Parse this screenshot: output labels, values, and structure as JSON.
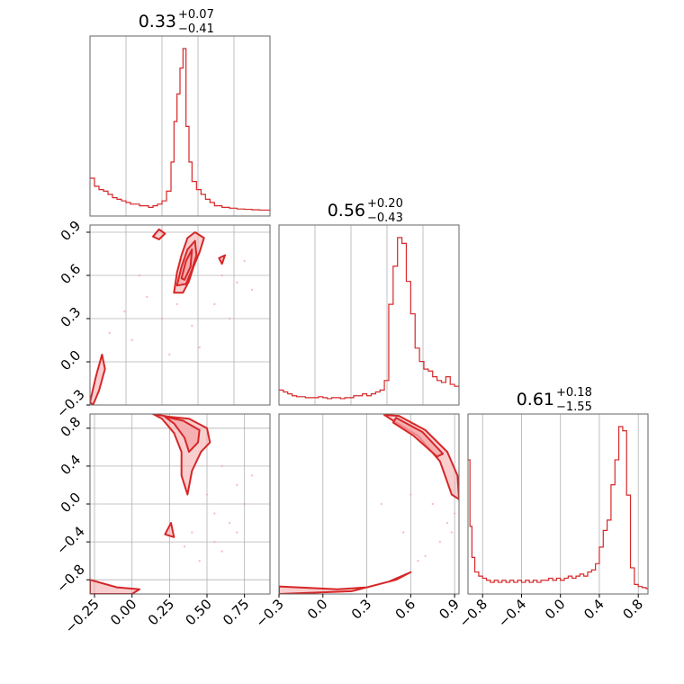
{
  "chart_data": {
    "type": "corner",
    "color": "#d62728",
    "fill_color": "#f4a6a8",
    "grid": true,
    "panels": [
      {
        "id": "hist-0",
        "type": "histogram",
        "title": {
          "median": "0.33",
          "plus": "+0.07",
          "minus": "−0.41"
        },
        "xlim": [
          -0.28,
          0.92
        ],
        "x_ticks": [],
        "x_tick_labels": [],
        "y_ticks": [],
        "y_tick_labels": [],
        "bins": [
          -0.28,
          -0.25,
          -0.22,
          -0.19,
          -0.16,
          -0.13,
          -0.1,
          -0.07,
          -0.04,
          -0.01,
          0.02,
          0.05,
          0.08,
          0.11,
          0.14,
          0.17,
          0.2,
          0.23,
          0.26,
          0.28,
          0.3,
          0.32,
          0.34,
          0.36,
          0.38,
          0.4,
          0.43,
          0.46,
          0.49,
          0.52,
          0.55,
          0.6,
          0.65,
          0.7,
          0.75,
          0.8,
          0.85,
          0.92
        ],
        "counts": [
          0.2,
          0.15,
          0.13,
          0.12,
          0.1,
          0.08,
          0.07,
          0.06,
          0.05,
          0.04,
          0.04,
          0.03,
          0.03,
          0.02,
          0.03,
          0.04,
          0.06,
          0.12,
          0.3,
          0.55,
          0.72,
          0.88,
          1.0,
          0.52,
          0.3,
          0.18,
          0.13,
          0.1,
          0.07,
          0.05,
          0.03,
          0.02,
          0.015,
          0.01,
          0.008,
          0.005,
          0.003
        ]
      },
      {
        "id": "hist-1",
        "type": "histogram",
        "title": {
          "median": "0.56",
          "plus": "+0.20",
          "minus": "−0.43"
        },
        "xlim": [
          -0.3,
          0.93
        ],
        "x_ticks": [],
        "x_tick_labels": [],
        "y_ticks": [],
        "y_tick_labels": [],
        "bins": [
          -0.3,
          -0.27,
          -0.24,
          -0.21,
          -0.18,
          -0.15,
          -0.12,
          -0.09,
          -0.06,
          -0.03,
          0.0,
          0.03,
          0.06,
          0.09,
          0.12,
          0.15,
          0.18,
          0.21,
          0.24,
          0.27,
          0.3,
          0.33,
          0.36,
          0.39,
          0.42,
          0.45,
          0.48,
          0.51,
          0.54,
          0.57,
          0.6,
          0.63,
          0.66,
          0.69,
          0.72,
          0.75,
          0.78,
          0.81,
          0.84,
          0.87,
          0.9,
          0.93
        ],
        "counts": [
          0.05,
          0.04,
          0.03,
          0.02,
          0.015,
          0.015,
          0.01,
          0.01,
          0.01,
          0.015,
          0.01,
          0.005,
          0.01,
          0.01,
          0.005,
          0.01,
          0.01,
          0.02,
          0.02,
          0.03,
          0.02,
          0.03,
          0.04,
          0.05,
          0.1,
          0.5,
          0.7,
          0.85,
          0.82,
          0.62,
          0.45,
          0.27,
          0.2,
          0.16,
          0.15,
          0.12,
          0.1,
          0.09,
          0.12,
          0.08,
          0.07
        ]
      },
      {
        "id": "hist-2",
        "type": "histogram",
        "title": {
          "median": "0.61",
          "plus": "+0.18",
          "minus": "−1.55"
        },
        "xlim": [
          -0.95,
          0.9
        ],
        "x_ticks": [
          -0.8,
          -0.4,
          0.0,
          0.4,
          0.8
        ],
        "x_tick_labels": [
          "−0.8",
          "−0.4",
          "0.0",
          "0.4",
          "0.8"
        ],
        "y_ticks": [],
        "y_tick_labels": [],
        "bins": [
          -0.95,
          -0.93,
          -0.91,
          -0.88,
          -0.84,
          -0.8,
          -0.76,
          -0.72,
          -0.68,
          -0.64,
          -0.6,
          -0.56,
          -0.52,
          -0.48,
          -0.44,
          -0.4,
          -0.36,
          -0.32,
          -0.28,
          -0.24,
          -0.2,
          -0.16,
          -0.12,
          -0.08,
          -0.04,
          0.0,
          0.04,
          0.08,
          0.12,
          0.16,
          0.2,
          0.24,
          0.28,
          0.32,
          0.36,
          0.4,
          0.44,
          0.48,
          0.52,
          0.56,
          0.6,
          0.64,
          0.68,
          0.72,
          0.76,
          0.8,
          0.84,
          0.88,
          0.9
        ],
        "counts": [
          0.62,
          0.3,
          0.15,
          0.08,
          0.06,
          0.05,
          0.04,
          0.03,
          0.04,
          0.03,
          0.04,
          0.03,
          0.04,
          0.03,
          0.04,
          0.03,
          0.04,
          0.03,
          0.04,
          0.03,
          0.04,
          0.04,
          0.05,
          0.04,
          0.05,
          0.04,
          0.05,
          0.06,
          0.05,
          0.06,
          0.07,
          0.06,
          0.08,
          0.09,
          0.12,
          0.2,
          0.28,
          0.33,
          0.5,
          0.62,
          0.78,
          0.76,
          0.45,
          0.1,
          0.02,
          0.01,
          0.005,
          0.0
        ]
      },
      {
        "id": "scatter-1-0",
        "type": "contour",
        "xlim": [
          -0.28,
          0.92
        ],
        "ylim": [
          -0.3,
          0.95
        ],
        "x_ticks": [],
        "x_tick_labels": [],
        "y_ticks": [
          0.9,
          0.6,
          0.3,
          0.0,
          -0.3
        ],
        "y_tick_labels": [
          "0.9",
          "0.6",
          "0.3",
          "0.0",
          "−0.3"
        ],
        "contours": [
          [
            [
              0.28,
              0.48
            ],
            [
              0.3,
              0.62
            ],
            [
              0.33,
              0.74
            ],
            [
              0.37,
              0.86
            ],
            [
              0.42,
              0.9
            ],
            [
              0.48,
              0.86
            ],
            [
              0.45,
              0.76
            ],
            [
              0.41,
              0.66
            ],
            [
              0.38,
              0.56
            ],
            [
              0.34,
              0.48
            ]
          ],
          [
            [
              0.3,
              0.53
            ],
            [
              0.33,
              0.66
            ],
            [
              0.37,
              0.78
            ],
            [
              0.42,
              0.84
            ],
            [
              0.43,
              0.74
            ],
            [
              0.4,
              0.64
            ],
            [
              0.36,
              0.54
            ]
          ],
          [
            [
              0.33,
              0.58
            ],
            [
              0.36,
              0.7
            ],
            [
              0.4,
              0.78
            ],
            [
              0.39,
              0.66
            ],
            [
              0.35,
              0.57
            ]
          ],
          [
            [
              -0.28,
              -0.28
            ],
            [
              -0.24,
              -0.1
            ],
            [
              -0.2,
              0.05
            ],
            [
              -0.18,
              -0.05
            ],
            [
              -0.22,
              -0.2
            ],
            [
              -0.26,
              -0.3
            ]
          ],
          [
            [
              0.14,
              0.87
            ],
            [
              0.18,
              0.92
            ],
            [
              0.22,
              0.89
            ],
            [
              0.18,
              0.85
            ]
          ],
          [
            [
              0.58,
              0.72
            ],
            [
              0.62,
              0.74
            ],
            [
              0.6,
              0.68
            ]
          ]
        ],
        "points": [
          [
            0.05,
            0.6
          ],
          [
            0.1,
            0.45
          ],
          [
            0.2,
            0.3
          ],
          [
            0.4,
            0.25
          ],
          [
            0.55,
            0.4
          ],
          [
            0.7,
            0.55
          ],
          [
            0.8,
            0.5
          ],
          [
            -0.05,
            0.35
          ],
          [
            0.65,
            0.3
          ],
          [
            0.75,
            0.7
          ],
          [
            0.45,
            0.1
          ],
          [
            0.25,
            0.05
          ],
          [
            0.0,
            0.15
          ],
          [
            -0.15,
            0.2
          ],
          [
            0.3,
            0.4
          ],
          [
            0.6,
            0.6
          ]
        ]
      },
      {
        "id": "scatter-2-0",
        "type": "contour",
        "xlim": [
          -0.28,
          0.92
        ],
        "ylim": [
          -0.95,
          0.95
        ],
        "x_ticks": [
          -0.25,
          0.0,
          0.25,
          0.5,
          0.75
        ],
        "x_tick_labels": [
          "−0.25",
          "0.00",
          "0.25",
          "0.50",
          "0.75"
        ],
        "y_ticks": [
          0.8,
          0.4,
          0.0,
          -0.4,
          -0.8
        ],
        "y_tick_labels": [
          "0.8",
          "0.4",
          "0.0",
          "−0.4",
          "−0.8"
        ],
        "contours": [
          [
            [
              0.14,
              0.95
            ],
            [
              0.25,
              0.92
            ],
            [
              0.38,
              0.9
            ],
            [
              0.5,
              0.8
            ],
            [
              0.52,
              0.65
            ],
            [
              0.46,
              0.55
            ],
            [
              0.4,
              0.35
            ],
            [
              0.37,
              0.1
            ],
            [
              0.33,
              0.3
            ],
            [
              0.33,
              0.55
            ],
            [
              0.28,
              0.75
            ],
            [
              0.2,
              0.9
            ]
          ],
          [
            [
              0.22,
              0.92
            ],
            [
              0.34,
              0.88
            ],
            [
              0.45,
              0.78
            ],
            [
              0.44,
              0.65
            ],
            [
              0.38,
              0.55
            ],
            [
              0.35,
              0.7
            ],
            [
              0.28,
              0.85
            ]
          ],
          [
            [
              -0.28,
              -0.8
            ],
            [
              -0.1,
              -0.88
            ],
            [
              0.05,
              -0.9
            ],
            [
              0.0,
              -0.95
            ],
            [
              -0.28,
              -0.95
            ]
          ],
          [
            [
              0.22,
              -0.32
            ],
            [
              0.26,
              -0.2
            ],
            [
              0.28,
              -0.35
            ]
          ]
        ],
        "points": [
          [
            0.6,
            0.4
          ],
          [
            0.7,
            0.2
          ],
          [
            0.75,
            0.0
          ],
          [
            0.65,
            -0.2
          ],
          [
            0.55,
            -0.4
          ],
          [
            0.45,
            -0.6
          ],
          [
            0.5,
            0.1
          ],
          [
            0.6,
            -0.5
          ],
          [
            0.4,
            -0.3
          ],
          [
            0.8,
            0.3
          ],
          [
            0.55,
            -0.1
          ],
          [
            0.35,
            -0.45
          ],
          [
            0.7,
            -0.3
          ]
        ]
      },
      {
        "id": "scatter-2-1",
        "type": "contour",
        "xlim": [
          -0.3,
          0.93
        ],
        "ylim": [
          -0.95,
          0.95
        ],
        "x_ticks": [
          -0.3,
          0.0,
          0.3,
          0.6,
          0.9
        ],
        "x_tick_labels": [
          "−0.3",
          "0.0",
          "0.3",
          "0.6",
          "0.9"
        ],
        "y_ticks": [],
        "y_tick_labels": [],
        "contours": [
          [
            [
              0.42,
              0.94
            ],
            [
              0.52,
              0.93
            ],
            [
              0.7,
              0.78
            ],
            [
              0.85,
              0.55
            ],
            [
              0.92,
              0.3
            ],
            [
              0.93,
              0.05
            ],
            [
              0.88,
              0.1
            ],
            [
              0.8,
              0.45
            ],
            [
              0.65,
              0.72
            ],
            [
              0.48,
              0.88
            ]
          ],
          [
            [
              0.5,
              0.91
            ],
            [
              0.68,
              0.76
            ],
            [
              0.82,
              0.53
            ],
            [
              0.78,
              0.5
            ],
            [
              0.62,
              0.72
            ],
            [
              0.48,
              0.86
            ]
          ],
          [
            [
              -0.3,
              -0.87
            ],
            [
              0.1,
              -0.9
            ],
            [
              0.3,
              -0.88
            ],
            [
              0.5,
              -0.8
            ],
            [
              0.6,
              -0.72
            ],
            [
              0.45,
              -0.82
            ],
            [
              0.2,
              -0.92
            ],
            [
              -0.3,
              -0.95
            ]
          ]
        ],
        "points": [
          [
            0.8,
            -0.4
          ],
          [
            0.85,
            -0.2
          ],
          [
            0.9,
            -0.1
          ],
          [
            0.7,
            -0.55
          ],
          [
            0.75,
            0.0
          ],
          [
            0.88,
            -0.3
          ],
          [
            0.65,
            -0.6
          ],
          [
            0.6,
            0.1
          ],
          [
            0.55,
            -0.3
          ],
          [
            0.4,
            0.0
          ]
        ]
      }
    ]
  }
}
